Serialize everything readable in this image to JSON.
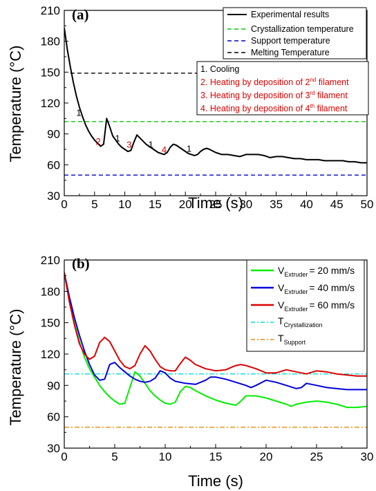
{
  "chart_data": [
    {
      "type": "line",
      "panel_label": "(a)",
      "xlabel": "Time (s)",
      "ylabel": "Temperature (°C)",
      "xlim": [
        0,
        50
      ],
      "ylim": [
        30,
        210
      ],
      "x_ticks": [
        0,
        5,
        10,
        15,
        20,
        25,
        30,
        35,
        40,
        45,
        50
      ],
      "y_ticks": [
        30,
        60,
        90,
        120,
        150,
        180,
        210
      ],
      "grid": false,
      "legend_position": "top-right",
      "series": [
        {
          "name": "Experimental results",
          "color": "#000000",
          "style": "solid",
          "x": [
            0,
            0.5,
            1,
            1.5,
            2,
            2.5,
            3,
            3.5,
            4,
            4.5,
            5,
            5.5,
            6,
            6.5,
            7,
            7.5,
            8,
            8.5,
            9,
            9.5,
            10,
            10.5,
            11,
            11.5,
            12,
            12.5,
            13,
            13.5,
            14,
            14.5,
            15,
            15.5,
            16,
            16.5,
            17,
            17.5,
            18,
            18.5,
            19,
            19.5,
            20,
            20.5,
            21,
            21.5,
            22,
            22.5,
            23,
            23.5,
            24,
            25,
            26,
            27,
            28,
            29,
            30,
            31,
            32,
            33,
            34,
            35,
            36,
            37,
            38,
            39,
            40,
            41,
            42,
            43,
            44,
            45,
            46,
            47,
            48,
            49,
            50
          ],
          "y": [
            193,
            172,
            155,
            140,
            127,
            116,
            107,
            99,
            93,
            88,
            84,
            81,
            78,
            80,
            105,
            97,
            88,
            84,
            80,
            77,
            75,
            73,
            74,
            82,
            89,
            86,
            83,
            80,
            78,
            76,
            74,
            72,
            71,
            70,
            72,
            77,
            80,
            79,
            77,
            75,
            73,
            71,
            70,
            69,
            70,
            73,
            75,
            76,
            75,
            72,
            70,
            70,
            69,
            68,
            70,
            70,
            70,
            69,
            67,
            68,
            68,
            67,
            66,
            66,
            65,
            65,
            65,
            64,
            64,
            64,
            64,
            63,
            63,
            62,
            62
          ]
        },
        {
          "name": "Crystallization temperature",
          "color": "#00cc00",
          "style": "dashed",
          "x": [
            0,
            50
          ],
          "y": [
            102,
            102
          ]
        },
        {
          "name": "Support temperature",
          "color": "#0000cc",
          "style": "dashed",
          "x": [
            0,
            50
          ],
          "y": [
            50,
            50
          ]
        },
        {
          "name": "Melting Temperature",
          "color": "#000000",
          "style": "dashed",
          "x": [
            1,
            22
          ],
          "y": [
            149,
            149
          ]
        }
      ],
      "annotations": [
        {
          "text": "1",
          "x": 2.4,
          "y": 111,
          "color": "#000000"
        },
        {
          "text": "2",
          "x": 5.6,
          "y": 83,
          "color": "#dd0000"
        },
        {
          "text": "1",
          "x": 8.8,
          "y": 86,
          "color": "#000000"
        },
        {
          "text": "3",
          "x": 10.7,
          "y": 80,
          "color": "#dd0000"
        },
        {
          "text": "1",
          "x": 14.3,
          "y": 80,
          "color": "#000000"
        },
        {
          "text": "4",
          "x": 16.5,
          "y": 75,
          "color": "#dd0000"
        },
        {
          "text": "1",
          "x": 20.6,
          "y": 76,
          "color": "#000000"
        }
      ],
      "notes_box": {
        "items": [
          {
            "text": "1. Cooling",
            "color": "#000000"
          },
          {
            "text": "2. Heating by deposition of 2",
            "sup": "nd",
            "tail": " filament",
            "color": "#dd0000"
          },
          {
            "text": "3. Heating by deposition of 3",
            "sup": "rd",
            "tail": " filament",
            "color": "#dd0000"
          },
          {
            "text": "4. Heating by deposition of 4",
            "sup": "th",
            "tail": " filament",
            "color": "#dd0000"
          }
        ]
      }
    },
    {
      "type": "line",
      "panel_label": "(b)",
      "xlabel": "Time (s)",
      "ylabel": "Temperature (°C)",
      "xlim": [
        0,
        30
      ],
      "ylim": [
        30,
        210
      ],
      "x_ticks": [
        0,
        5,
        10,
        15,
        20,
        25,
        30
      ],
      "y_ticks": [
        30,
        60,
        90,
        120,
        150,
        180,
        210
      ],
      "grid": false,
      "legend_position": "top-right",
      "series": [
        {
          "name": "V_Extruder = 20 mm/s",
          "legend": {
            "main": "V",
            "sub": "Extruder",
            "tail": "= 20 mm/s"
          },
          "color": "#00ee00",
          "style": "solid",
          "x": [
            0,
            0.5,
            1,
            1.5,
            2,
            2.5,
            3,
            3.5,
            4,
            4.5,
            5,
            5.5,
            6,
            6.5,
            7,
            7.5,
            8,
            8.5,
            9,
            9.5,
            10,
            10.5,
            11,
            11.5,
            12,
            12.5,
            13,
            14,
            15,
            16,
            16.5,
            17,
            17.5,
            18,
            19,
            20,
            21,
            22,
            22.5,
            23,
            24,
            25,
            26,
            27,
            28,
            29,
            30
          ],
          "y": [
            198,
            172,
            150,
            132,
            117,
            106,
            98,
            90,
            84,
            79,
            75,
            72,
            73,
            88,
            103,
            99,
            92,
            85,
            80,
            76,
            73,
            72,
            74,
            84,
            89,
            88,
            85,
            80,
            76,
            73,
            72,
            71,
            75,
            80,
            80,
            78,
            75,
            72,
            70,
            72,
            74,
            75,
            74,
            72,
            69,
            69,
            70
          ]
        },
        {
          "name": "V_Extruder = 40 mm/s",
          "legend": {
            "main": "V",
            "sub": "Extruder",
            "tail": "= 40 mm/s"
          },
          "color": "#0000dd",
          "style": "solid",
          "x": [
            0,
            0.5,
            1,
            1.5,
            2,
            2.5,
            3,
            3.5,
            4,
            4.5,
            5,
            5.5,
            6,
            6.5,
            7,
            7.5,
            8,
            8.5,
            9,
            9.5,
            10,
            10.5,
            11,
            12,
            13,
            14,
            14.5,
            15,
            16,
            17,
            18,
            18.5,
            19,
            20,
            21,
            22,
            23,
            23.5,
            24,
            25,
            26,
            27,
            28,
            29,
            30
          ],
          "y": [
            198,
            175,
            155,
            138,
            123,
            110,
            100,
            95,
            96,
            110,
            112,
            107,
            103,
            99,
            96,
            94,
            93,
            94,
            97,
            104,
            102,
            97,
            94,
            92,
            91,
            95,
            98,
            98,
            96,
            93,
            90,
            88,
            90,
            95,
            93,
            90,
            87,
            88,
            92,
            90,
            88,
            87,
            86,
            86,
            86
          ]
        },
        {
          "name": "V_Extruder = 60 mm/s",
          "legend": {
            "main": "V",
            "sub": "Extruder",
            "tail": "= 60 mm/s"
          },
          "color": "#dd0000",
          "style": "solid",
          "x": [
            0,
            0.5,
            1,
            1.5,
            2,
            2.5,
            3,
            3.5,
            4,
            4.5,
            5,
            5.5,
            6,
            6.5,
            7,
            7.5,
            8,
            8.5,
            9,
            9.5,
            10,
            10.5,
            11,
            11.5,
            12,
            12.5,
            13,
            14,
            15,
            16,
            16.5,
            17,
            17.5,
            18,
            19,
            20,
            21,
            22,
            23,
            24,
            25,
            26,
            27,
            28,
            29,
            30
          ],
          "y": [
            198,
            170,
            148,
            130,
            120,
            115,
            118,
            131,
            136,
            132,
            123,
            114,
            108,
            106,
            109,
            120,
            128,
            123,
            115,
            108,
            105,
            104,
            104,
            111,
            117,
            114,
            110,
            106,
            104,
            105,
            107,
            109,
            110,
            109,
            106,
            102,
            102,
            105,
            103,
            101,
            104,
            103,
            101,
            100,
            99,
            99
          ]
        },
        {
          "name": "T_Crystallization",
          "legend": {
            "main": "T",
            "sub": "Crystallization",
            "tail": ""
          },
          "color": "#00dddd",
          "style": "dashdot",
          "x": [
            0,
            30
          ],
          "y": [
            101,
            101
          ]
        },
        {
          "name": "T_Support",
          "legend": {
            "main": "T",
            "sub": "Support",
            "tail": ""
          },
          "color": "#ee8800",
          "style": "dashdot",
          "x": [
            0,
            30
          ],
          "y": [
            50,
            50
          ]
        }
      ]
    }
  ]
}
